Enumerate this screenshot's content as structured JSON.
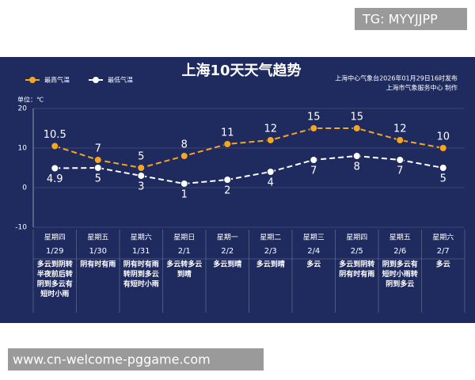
{
  "chart_data": {
    "type": "line",
    "title": "上海10天天气趋势",
    "source": [
      "上海中心气象台2026年01月29日16时发布",
      "上海市气象服务中心 制作"
    ],
    "ylabel": "单位：℃",
    "categories": [
      "1/29",
      "1/30",
      "1/31",
      "2/1",
      "2/2",
      "2/3",
      "2/4",
      "2/5",
      "2/6",
      "2/7"
    ],
    "weekdays": [
      "星期四",
      "星期五",
      "星期六",
      "星期日",
      "星期一",
      "星期二",
      "星期三",
      "星期四",
      "星期五",
      "星期六"
    ],
    "weekday_colors": [
      "#ffffff",
      "#ffffff",
      "#f5a623",
      "#f5a623",
      "#ffffff",
      "#ffffff",
      "#ffffff",
      "#ffffff",
      "#ffffff",
      "#f5a623"
    ],
    "weather": [
      [
        "多云到阴转",
        "半夜前后转",
        "阴到多云有",
        "短时小雨"
      ],
      [
        "阴有时有雨"
      ],
      [
        "阴有时有雨",
        "转阴到多云",
        "有短时小雨"
      ],
      [
        "多云转多云",
        "到晴"
      ],
      [
        "多云到晴"
      ],
      [
        "多云到晴"
      ],
      [
        "多云"
      ],
      [
        "多云到阴转",
        "阴有时有雨"
      ],
      [
        "阴到多云有",
        "短时小雨转",
        "阴到多云"
      ],
      [
        "多云"
      ]
    ],
    "series": [
      {
        "name": "最高气温",
        "color": "#f5a623",
        "values": [
          10.5,
          7,
          5,
          8,
          11,
          12,
          15,
          15,
          12,
          10
        ],
        "label_position": "above"
      },
      {
        "name": "最低气温",
        "color": "#ffffff",
        "values": [
          4.9,
          5,
          3,
          1,
          2,
          4,
          7,
          8,
          7,
          5
        ],
        "label_position": "below"
      }
    ],
    "ylim": [
      -10,
      20
    ],
    "yticks": [
      -10,
      0,
      10,
      20
    ],
    "grid": true
  },
  "overlays": {
    "top_right": "TG: MYYJJPP",
    "bottom_left": "www.cn-welcome-pggame.com"
  }
}
